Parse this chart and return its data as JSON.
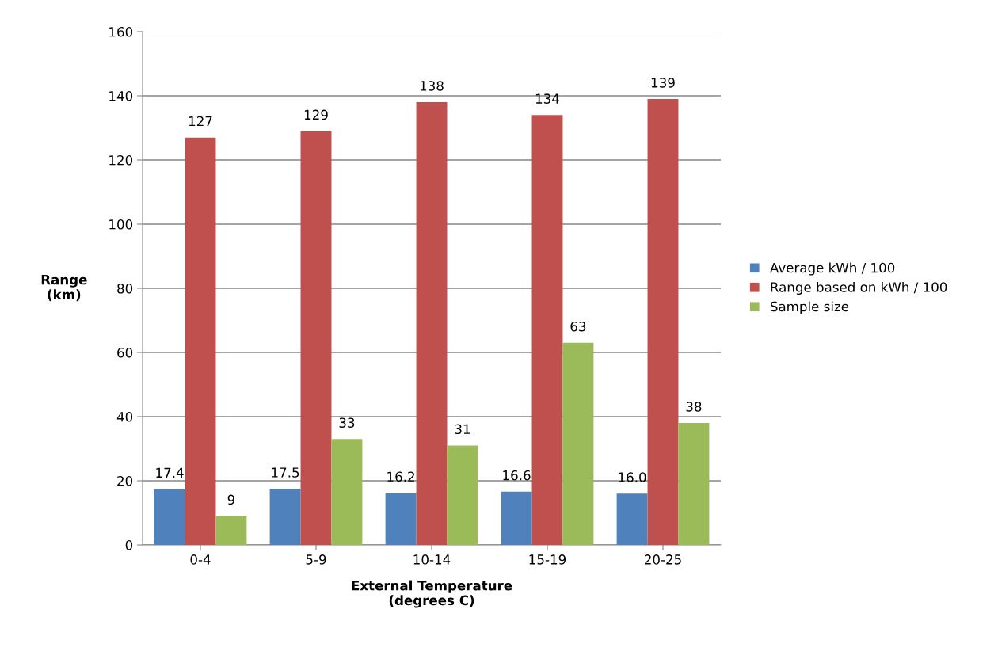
{
  "chart_data": {
    "type": "bar",
    "xlabel": "External Temperature\n(degrees C)",
    "ylabel": "Range\n(km)",
    "categories": [
      "0-4",
      "5-9",
      "10-14",
      "15-19",
      "20-25"
    ],
    "series": [
      {
        "name": "Average kWh / 100",
        "color": "#4f81bd",
        "values": [
          17.4,
          17.5,
          16.2,
          16.6,
          16.0
        ],
        "value_labels": [
          "17.4",
          "17.5",
          "16.2",
          "16.6",
          "16.0"
        ]
      },
      {
        "name": "Range based on kWh / 100",
        "color": "#c0504d",
        "values": [
          127,
          129,
          138,
          134,
          139
        ],
        "value_labels": [
          "127",
          "129",
          "138",
          "134",
          "139"
        ]
      },
      {
        "name": "Sample size",
        "color": "#9bbb59",
        "values": [
          9,
          33,
          31,
          63,
          38
        ],
        "value_labels": [
          "9",
          "33",
          "31",
          "63",
          "38"
        ]
      }
    ],
    "ylim": [
      0,
      160
    ],
    "yticks": [
      0,
      20,
      40,
      60,
      80,
      100,
      120,
      140,
      160
    ],
    "grid": "y",
    "legend": "right"
  }
}
